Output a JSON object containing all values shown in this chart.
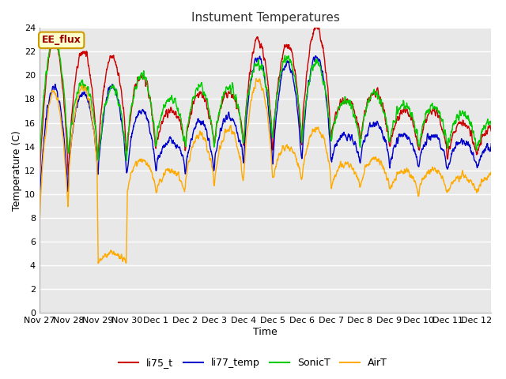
{
  "title": "Instument Temperatures",
  "xlabel": "Time",
  "ylabel": "Temperature (C)",
  "ylim": [
    0,
    24
  ],
  "yticks": [
    0,
    2,
    4,
    6,
    8,
    10,
    12,
    14,
    16,
    18,
    20,
    22,
    24
  ],
  "xtick_labels": [
    "Nov 27",
    "Nov 28",
    "Nov 29",
    "Nov 30",
    "Dec 1",
    "Dec 2",
    "Dec 3",
    "Dec 4",
    "Dec 5",
    "Dec 6",
    "Dec 7",
    "Dec 8",
    "Dec 9",
    "Dec 10",
    "Dec 11",
    "Dec 12"
  ],
  "colors": {
    "li75_t": "#cc0000",
    "li77_temp": "#0000cc",
    "SonicT": "#00cc00",
    "AirT": "#ffaa00"
  },
  "plot_bg": "#e8e8e8",
  "fig_bg": "#ffffff",
  "grid_color": "#ffffff",
  "annotation_text": "EE_flux",
  "annotation_color": "#990000",
  "annotation_bg": "#ffffcc",
  "annotation_border": "#cc9900",
  "linewidth": 1.0
}
